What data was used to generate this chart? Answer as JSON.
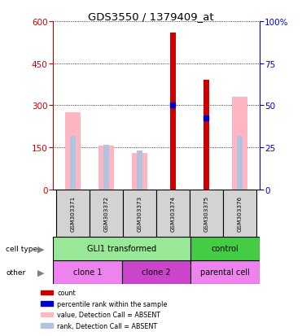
{
  "title": "GDS3550 / 1379409_at",
  "samples": [
    "GSM303371",
    "GSM303372",
    "GSM303373",
    "GSM303374",
    "GSM303375",
    "GSM303376"
  ],
  "count_values": [
    null,
    null,
    null,
    560,
    390,
    null
  ],
  "value_absent": [
    275,
    155,
    130,
    null,
    null,
    330
  ],
  "rank_absent": [
    190,
    160,
    140,
    null,
    null,
    190
  ],
  "percentile_rank_blue_sq": [
    null,
    null,
    null,
    300,
    255,
    null
  ],
  "pink_bar_width": 0.45,
  "rank_bar_width": 0.18,
  "count_bar_width": 0.18,
  "ylim_left": [
    0,
    600
  ],
  "ylim_right": [
    0,
    100
  ],
  "yticks_left": [
    0,
    150,
    300,
    450,
    600
  ],
  "yticks_right": [
    0,
    25,
    50,
    75,
    100
  ],
  "cell_type_groups": [
    {
      "label": "GLI1 transformed",
      "span": [
        0,
        4
      ],
      "color": "#98E898"
    },
    {
      "label": "control",
      "span": [
        4,
        6
      ],
      "color": "#44CC44"
    }
  ],
  "other_groups": [
    {
      "label": "clone 1",
      "span": [
        0,
        2
      ],
      "color": "#EE82EE"
    },
    {
      "label": "clone 2",
      "span": [
        2,
        4
      ],
      "color": "#CC44CC"
    },
    {
      "label": "parental cell",
      "span": [
        4,
        6
      ],
      "color": "#EE82EE"
    }
  ],
  "legend_items": [
    {
      "color": "#CC0000",
      "label": "count"
    },
    {
      "color": "#0000CC",
      "label": "percentile rank within the sample"
    },
    {
      "color": "#FFB6C1",
      "label": "value, Detection Call = ABSENT"
    },
    {
      "color": "#B0C4DE",
      "label": "rank, Detection Call = ABSENT"
    }
  ],
  "background_color": "#ffffff",
  "left_axis_color": "#CC0000",
  "right_axis_color": "#0000CC",
  "absent_pink": "#FFB6C1",
  "absent_rank_blue": "#B0C4DE",
  "count_color": "#CC0000",
  "pct_color": "#0000CC"
}
